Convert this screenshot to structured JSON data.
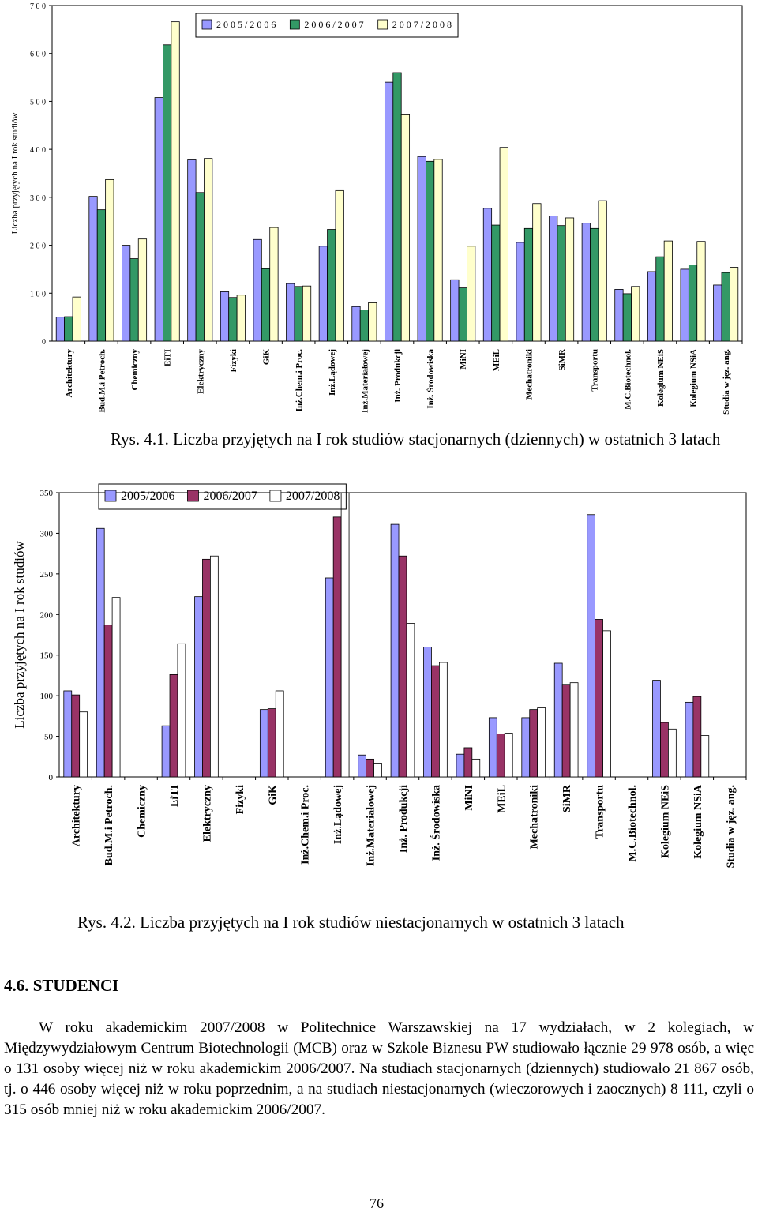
{
  "chart_data": [
    {
      "type": "bar",
      "title": "",
      "ylabel": "Liczba przyjętych na I rok studiów",
      "ylim": [
        0,
        700
      ],
      "yticks": [
        "0",
        "1 0 0",
        "2 0 0",
        "3 0 0",
        "4 0 0",
        "5 0 0",
        "6 0 0",
        "7 0 0"
      ],
      "legend_position": "top",
      "categories": [
        "Architektury",
        "Bud.M.i Petroch.",
        "Chemiczny",
        "EiTI",
        "Elektryczny",
        "Fizyki",
        "GiK",
        "Inż.Chem.i Proc.",
        "Inż.Lądowej",
        "Inż.Materiałowej",
        "Inż. Produkcji",
        "Inż. Środowiska",
        "MiNI",
        "MEiL",
        "Mechatroniki",
        "SiMR",
        "Transportu",
        "M.C.Biotechnol.",
        "Kolegium NEiS",
        "Kolegium NSiA",
        "Studia w jęz. ang."
      ],
      "series": [
        {
          "name": "2 0 0 5 / 2 0 0 6",
          "color": "#9999ff",
          "values": [
            50,
            302,
            200,
            508,
            378,
            103,
            212,
            120,
            198,
            72,
            540,
            385,
            128,
            277,
            206,
            261,
            246,
            108,
            145,
            150,
            117
          ]
        },
        {
          "name": "2 0 0 6 / 2 0 0 7",
          "color": "#339966",
          "values": [
            51,
            274,
            172,
            618,
            310,
            91,
            151,
            114,
            233,
            65,
            560,
            375,
            111,
            242,
            235,
            241,
            235,
            99,
            176,
            159,
            143
          ]
        },
        {
          "name": "2 0 0 7 / 2 0 0 8",
          "color": "#ffffcc",
          "values": [
            92,
            337,
            213,
            666,
            381,
            96,
            237,
            115,
            314,
            80,
            472,
            379,
            198,
            404,
            287,
            257,
            293,
            114,
            209,
            208,
            154
          ]
        }
      ]
    },
    {
      "type": "bar",
      "title": "",
      "ylabel": "Liczba przyjętych na I rok studiów",
      "ylim": [
        0,
        350
      ],
      "yticks": [
        "0",
        "50",
        "100",
        "150",
        "200",
        "250",
        "300",
        "350"
      ],
      "legend_position": "top",
      "categories": [
        "Architektury",
        "Bud.M.i Petroch.",
        "Chemiczny",
        "EiTI",
        "Elektryczny",
        "Fizyki",
        "GiK",
        "Inż.Chem.i Proc.",
        "Inż.Lądowej",
        "Inż.Materiałowej",
        "Inż. Produkcji",
        "Inż. Środowiska",
        "MiNI",
        "MEiL",
        "Mechatroniki",
        "SiMR",
        "Transportu",
        "M.C.Biotechnol.",
        "Kolegium NEiS",
        "Kolegium NSiA",
        "Studia w jęz. ang."
      ],
      "series": [
        {
          "name": "2005/2006",
          "color": "#9999ff",
          "values": [
            106,
            306,
            0,
            63,
            222,
            0,
            83,
            0,
            245,
            27,
            311,
            160,
            28,
            73,
            73,
            140,
            323,
            0,
            119,
            92,
            0
          ]
        },
        {
          "name": "2006/2007",
          "color": "#993366",
          "values": [
            101,
            187,
            0,
            126,
            268,
            0,
            84,
            0,
            320,
            22,
            272,
            137,
            36,
            53,
            83,
            114,
            194,
            0,
            67,
            99,
            0
          ]
        },
        {
          "name": "2007/2008",
          "color": "#ffffff",
          "values": [
            80,
            221,
            0,
            164,
            272,
            0,
            106,
            0,
            350,
            17,
            189,
            141,
            22,
            54,
            85,
            116,
            180,
            0,
            59,
            51,
            0
          ]
        }
      ]
    }
  ],
  "captions": {
    "fig1": "Rys. 4.1. Liczba przyjętych na I rok studiów stacjonarnych (dziennych) w ostatnich 3 latach",
    "fig2": "Rys. 4.2. Liczba przyjętych na I rok studiów niestacjonarnych w ostatnich 3 latach"
  },
  "section": {
    "heading": "4.6. STUDENCI",
    "paragraph": "W roku akademickim 2007/2008 w Politechnice Warszawskiej na 17 wydziałach, w 2 kolegiach, w Międzywydziałowym Centrum Biotechnologii (MCB) oraz w Szkole Biznesu PW studiowało łącznie 29 978 osób, a więc o 131 osoby więcej niż w roku akademickim 2006/2007. Na studiach stacjonarnych (dziennych) studiowało 21 867 osób, tj. o 446 osoby więcej niż w roku poprzednim, a na studiach niestacjonarnych (wieczorowych i zaocznych) 8 111, czyli o 315 osób mniej niż w roku akademickim 2006/2007."
  },
  "page_number": "76"
}
